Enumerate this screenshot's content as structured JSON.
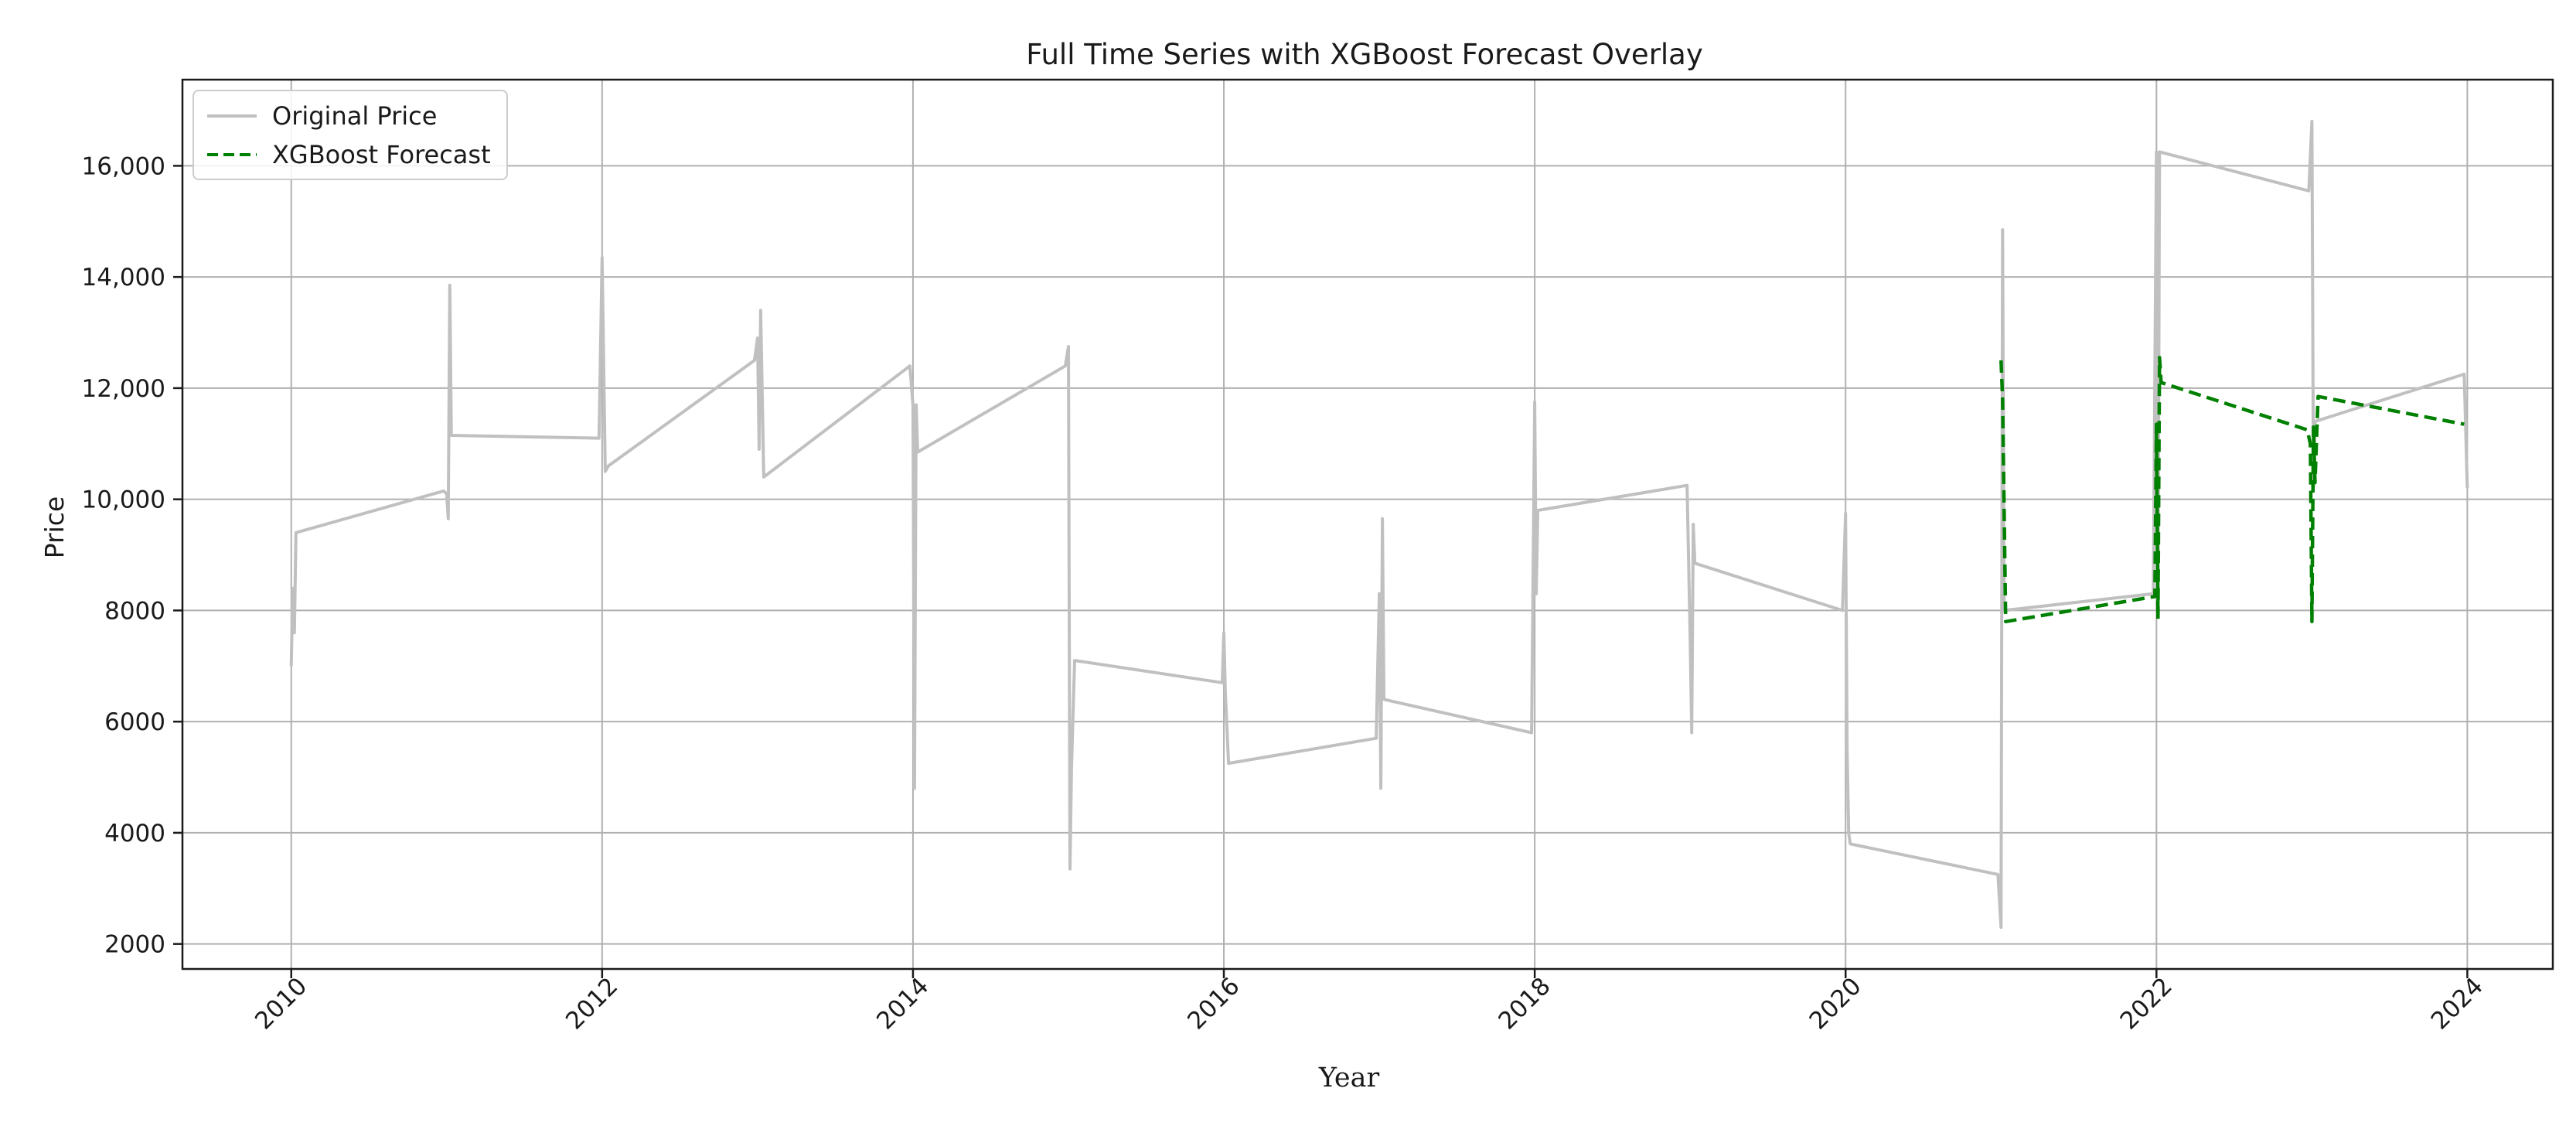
{
  "chart_data": {
    "type": "line",
    "title": "Full Time Series with XGBoost Forecast Overlay",
    "xlabel": "Year",
    "ylabel": "Price",
    "xlim": [
      2009.3,
      2024.55
    ],
    "ylim": [
      1550,
      17550
    ],
    "x_ticks": [
      2010,
      2012,
      2014,
      2016,
      2018,
      2020,
      2022,
      2024
    ],
    "x_tick_labels": [
      "2010",
      "2012",
      "2014",
      "2016",
      "2018",
      "2020",
      "2022",
      "2024"
    ],
    "y_ticks": [
      2000,
      4000,
      6000,
      8000,
      10000,
      12000,
      14000,
      16000
    ],
    "y_tick_labels": [
      "2000",
      "4000",
      "6000",
      "8000",
      "10,000",
      "12,000",
      "14,000",
      "16,000"
    ],
    "grid": true,
    "legend_position": "top-left",
    "series": [
      {
        "name": "Original Price",
        "color": "#c0c0c0",
        "style": "solid",
        "points": [
          [
            2010.0,
            7000
          ],
          [
            2010.01,
            8400
          ],
          [
            2010.02,
            7600
          ],
          [
            2010.03,
            9400
          ],
          [
            2010.98,
            10150
          ],
          [
            2011.0,
            10100
          ],
          [
            2011.01,
            9650
          ],
          [
            2011.02,
            13850
          ],
          [
            2011.03,
            11150
          ],
          [
            2011.98,
            11100
          ],
          [
            2012.0,
            14350
          ],
          [
            2012.01,
            12500
          ],
          [
            2012.02,
            10500
          ],
          [
            2012.04,
            10600
          ],
          [
            2012.98,
            12500
          ],
          [
            2013.0,
            12900
          ],
          [
            2013.01,
            10900
          ],
          [
            2013.02,
            13400
          ],
          [
            2013.04,
            10400
          ],
          [
            2013.98,
            12400
          ],
          [
            2014.0,
            11700
          ],
          [
            2014.01,
            4800
          ],
          [
            2014.02,
            11700
          ],
          [
            2014.03,
            10850
          ],
          [
            2014.98,
            12400
          ],
          [
            2015.0,
            12750
          ],
          [
            2015.01,
            3350
          ],
          [
            2015.02,
            5200
          ],
          [
            2015.04,
            7100
          ],
          [
            2015.99,
            6700
          ],
          [
            2016.0,
            7600
          ],
          [
            2016.01,
            6500
          ],
          [
            2016.03,
            5250
          ],
          [
            2016.98,
            5700
          ],
          [
            2017.0,
            8300
          ],
          [
            2017.01,
            4800
          ],
          [
            2017.02,
            9650
          ],
          [
            2017.03,
            6400
          ],
          [
            2017.98,
            5800
          ],
          [
            2018.0,
            11750
          ],
          [
            2018.01,
            8300
          ],
          [
            2018.02,
            9800
          ],
          [
            2018.98,
            10250
          ],
          [
            2019.0,
            7500
          ],
          [
            2019.01,
            5800
          ],
          [
            2019.02,
            9550
          ],
          [
            2019.03,
            8850
          ],
          [
            2019.98,
            8000
          ],
          [
            2020.0,
            9750
          ],
          [
            2020.01,
            5500
          ],
          [
            2020.02,
            4000
          ],
          [
            2020.03,
            3800
          ],
          [
            2020.98,
            3250
          ],
          [
            2021.0,
            2300
          ],
          [
            2021.01,
            14850
          ],
          [
            2021.02,
            8000
          ],
          [
            2021.98,
            8300
          ],
          [
            2022.0,
            16250
          ],
          [
            2022.01,
            7900
          ],
          [
            2022.02,
            16250
          ],
          [
            2022.98,
            15550
          ],
          [
            2023.0,
            16800
          ],
          [
            2023.01,
            10200
          ],
          [
            2023.02,
            11400
          ],
          [
            2023.98,
            12250
          ],
          [
            2024.0,
            10200
          ]
        ]
      },
      {
        "name": "XGBoost Forecast",
        "color": "#008000",
        "style": "dashed",
        "points": [
          [
            2021.0,
            12500
          ],
          [
            2021.01,
            11800
          ],
          [
            2021.03,
            7800
          ],
          [
            2021.99,
            8250
          ],
          [
            2022.0,
            11350
          ],
          [
            2022.01,
            7850
          ],
          [
            2022.02,
            12550
          ],
          [
            2022.03,
            12100
          ],
          [
            2022.97,
            11250
          ],
          [
            2022.99,
            11000
          ],
          [
            2023.0,
            7800
          ],
          [
            2023.01,
            11300
          ],
          [
            2023.02,
            10300
          ],
          [
            2023.04,
            11850
          ],
          [
            2023.98,
            11350
          ]
        ]
      }
    ]
  }
}
